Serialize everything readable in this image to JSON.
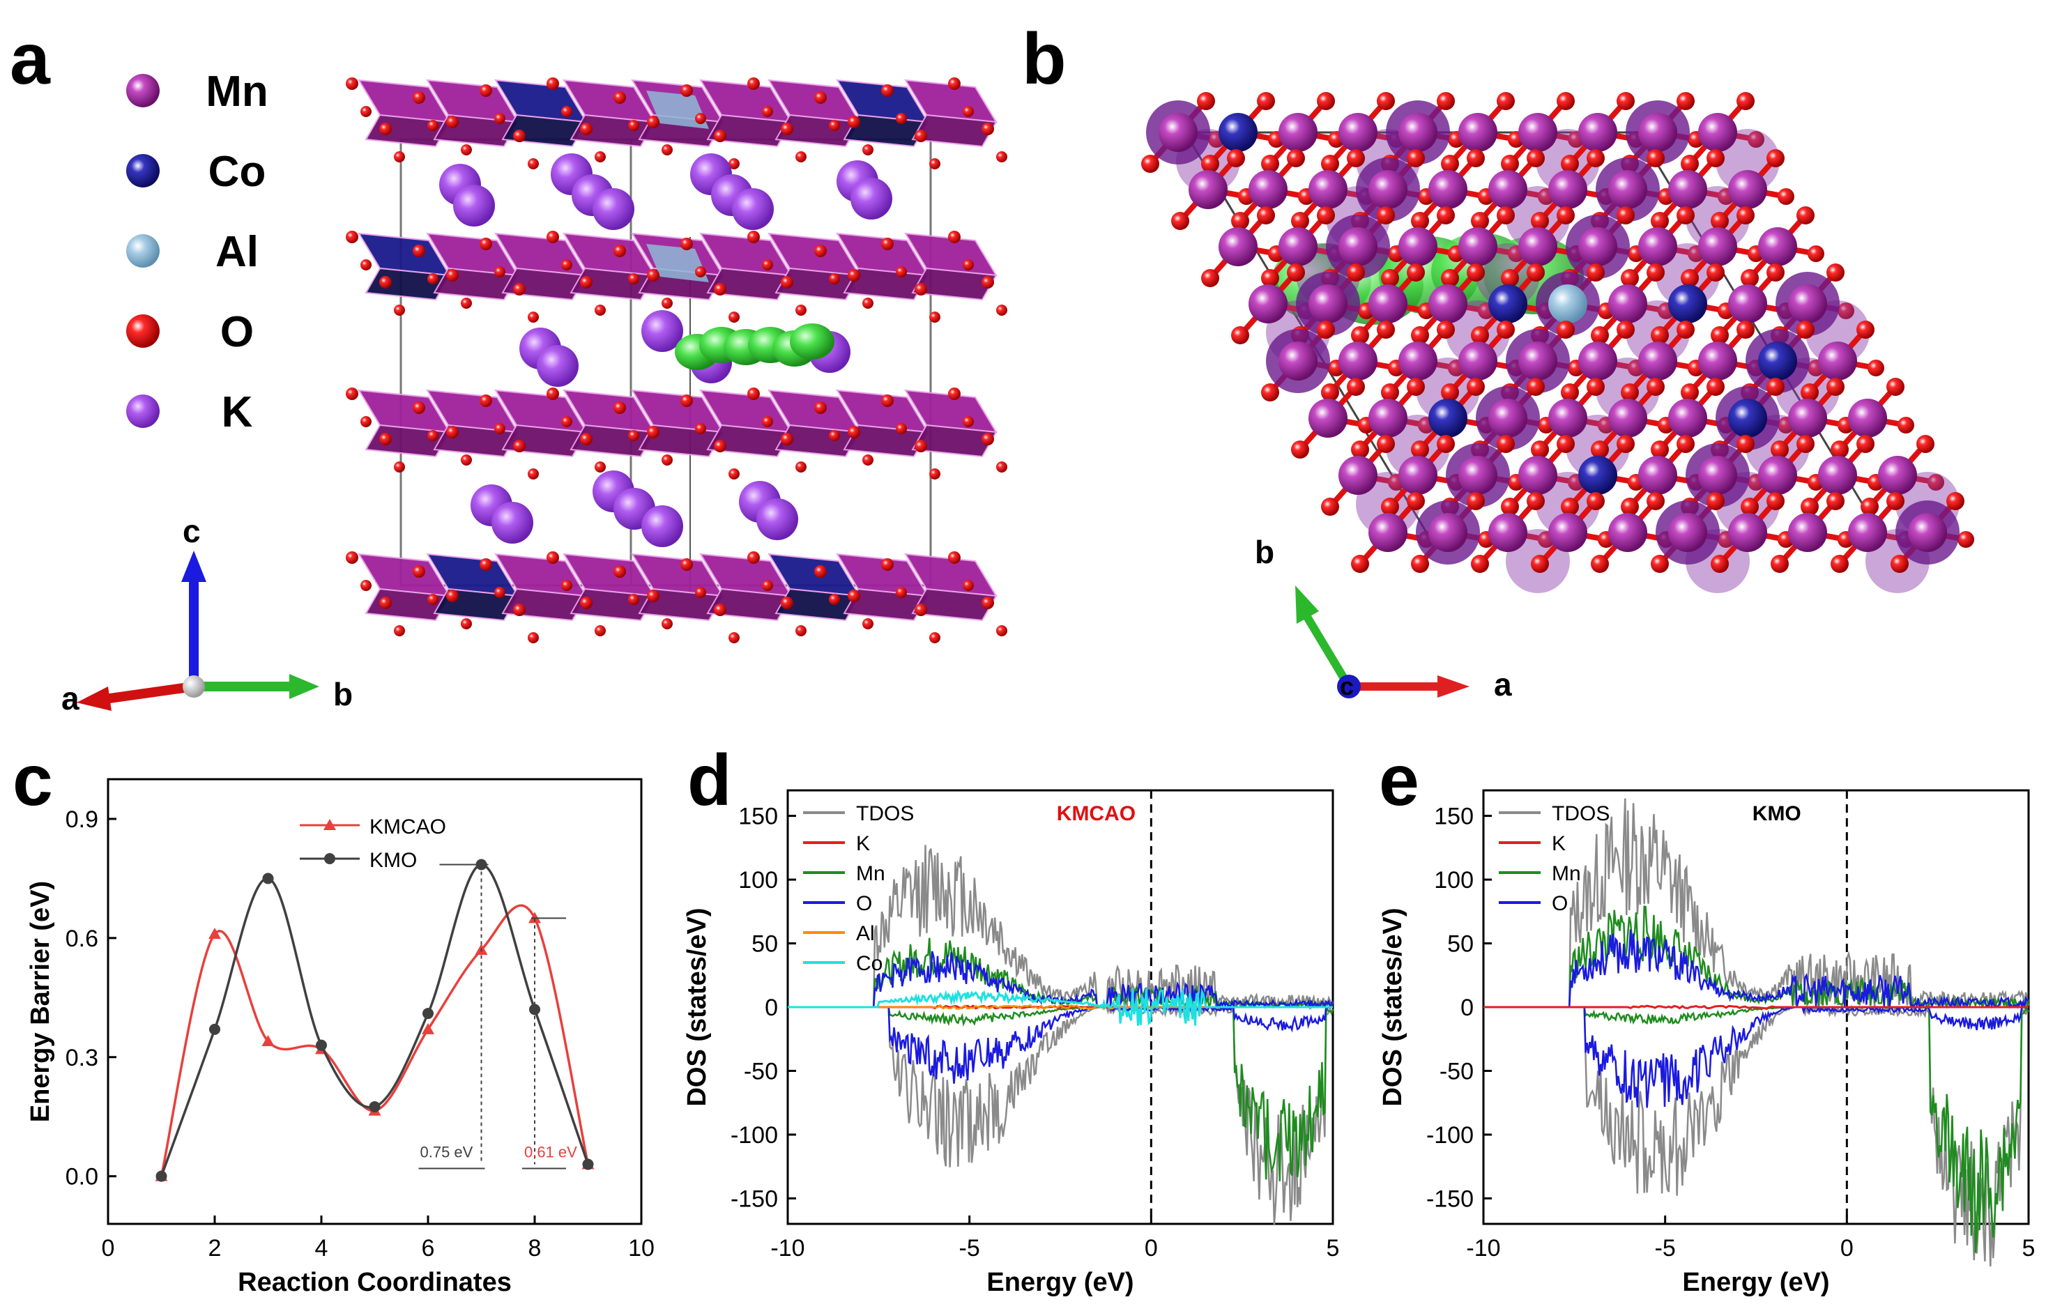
{
  "panels": {
    "a": "a",
    "b": "b",
    "c": "c",
    "d": "d",
    "e": "e"
  },
  "legend_a": [
    {
      "label": "Mn",
      "color": "#8b1a8b"
    },
    {
      "label": "Co",
      "color": "#1a1a8c"
    },
    {
      "label": "Al",
      "color": "#8fb9d6"
    },
    {
      "label": "O",
      "color": "#e01010"
    },
    {
      "label": "K",
      "color": "#a040e0"
    }
  ],
  "axes_a": {
    "c": "c",
    "a": "a",
    "b": "b"
  },
  "axes_b": {
    "b": "b",
    "a": "a",
    "c": "c"
  },
  "colors": {
    "octa": "#a0209a",
    "octa_dark": "#6e0f6a",
    "co": "#1a1a8c",
    "oxygen": "#e01010",
    "k": "#9a4ce0",
    "path": "#3ce03c"
  },
  "chart_data": [
    {
      "type": "line",
      "panel": "c",
      "xlabel": "Reaction Coordinates",
      "ylabel": "Energy Barrier (eV)",
      "xlim": [
        0,
        10
      ],
      "ylim": [
        -0.12,
        1.0
      ],
      "xticks": [
        0,
        2,
        4,
        6,
        8,
        10
      ],
      "yticks": [
        "0.0",
        "0.3",
        "0.6",
        "0.9"
      ],
      "series": [
        {
          "name": "KMCAO",
          "color": "#e8403c",
          "marker": "triangle",
          "x": [
            1,
            2,
            3,
            4,
            5,
            6,
            7,
            8,
            9
          ],
          "y": [
            0,
            0.61,
            0.34,
            0.32,
            0.165,
            0.37,
            0.57,
            0.65,
            0.03
          ]
        },
        {
          "name": "KMO",
          "color": "#404040",
          "marker": "circle",
          "x": [
            1,
            2,
            3,
            4,
            5,
            6,
            7,
            8,
            9
          ],
          "y": [
            0,
            0.37,
            0.75,
            0.33,
            0.175,
            0.41,
            0.785,
            0.42,
            0.03
          ]
        }
      ],
      "annotations": [
        {
          "text": "0.75 eV",
          "color": "#404040"
        },
        {
          "text": "0.61 eV",
          "color": "#e8403c"
        }
      ]
    },
    {
      "type": "line",
      "panel": "d",
      "title": "KMCAO",
      "title_color": "#e01010",
      "xlabel": "Energy (eV)",
      "ylabel": "DOS (states/eV)",
      "xlim": [
        -10,
        5
      ],
      "ylim": [
        -170,
        170
      ],
      "xticks": [
        -10,
        -5,
        0,
        5
      ],
      "yticks": [
        -150,
        -100,
        -50,
        0,
        50,
        100,
        150
      ],
      "series": [
        {
          "name": "TDOS",
          "color": "#8a8a8a"
        },
        {
          "name": "K",
          "color": "#e02020"
        },
        {
          "name": "Mn",
          "color": "#1e8c1e"
        },
        {
          "name": "O",
          "color": "#1a1ae0"
        },
        {
          "name": "Al",
          "color": "#ff8c00"
        },
        {
          "name": "Co",
          "color": "#1ee0e0"
        }
      ]
    },
    {
      "type": "line",
      "panel": "e",
      "title": "KMO",
      "title_color": "#000000",
      "xlabel": "Energy (eV)",
      "ylabel": "DOS (states/eV)",
      "xlim": [
        -10,
        5
      ],
      "ylim": [
        -170,
        170
      ],
      "xticks": [
        -10,
        -5,
        0,
        5
      ],
      "yticks": [
        -150,
        -100,
        -50,
        0,
        50,
        100,
        150
      ],
      "series": [
        {
          "name": "TDOS",
          "color": "#8a8a8a"
        },
        {
          "name": "K",
          "color": "#e02020"
        },
        {
          "name": "Mn",
          "color": "#1e8c1e"
        },
        {
          "name": "O",
          "color": "#1a1ae0"
        }
      ]
    }
  ]
}
